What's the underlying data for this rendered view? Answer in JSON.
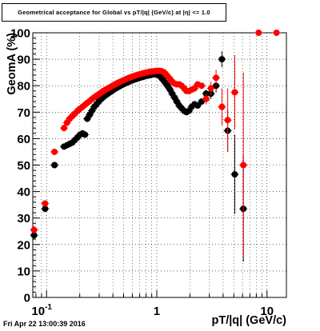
{
  "chart_data": {
    "type": "scatter",
    "title": "Geometrical acceptance for Global vs pT/|q| (GeV/c) at |η| <= 1.0",
    "xlabel": "pT/|q| (GeV/c)",
    "ylabel": "GeomA (%)",
    "xscale": "log",
    "xlim": [
      0.075,
      15
    ],
    "ylim": [
      0,
      100
    ],
    "grid": true,
    "x_tick_labels": [
      {
        "value": 0.1,
        "label": "10",
        "sup": "-1"
      },
      {
        "value": 1,
        "label": "1",
        "sup": ""
      },
      {
        "value": 10,
        "label": "10",
        "sup": ""
      }
    ],
    "y_ticks": [
      0,
      10,
      20,
      30,
      40,
      50,
      60,
      70,
      80,
      90,
      100
    ],
    "series": [
      {
        "color": "#000000",
        "points": [
          {
            "x": 0.077,
            "y": 23.5,
            "ey": 1.5
          },
          {
            "x": 0.097,
            "y": 33.5,
            "ey": 1.2
          },
          {
            "x": 0.118,
            "y": 50.0,
            "ey": 0
          },
          {
            "x": 0.144,
            "y": 57.0,
            "ey": 0
          },
          {
            "x": 0.153,
            "y": 57.5,
            "ey": 0
          },
          {
            "x": 0.162,
            "y": 58.0,
            "ey": 0
          },
          {
            "x": 0.171,
            "y": 58.5,
            "ey": 0
          },
          {
            "x": 0.181,
            "y": 59.5,
            "ey": 0
          },
          {
            "x": 0.191,
            "y": 60.5,
            "ey": 0
          },
          {
            "x": 0.201,
            "y": 61.5,
            "ey": 0
          },
          {
            "x": 0.212,
            "y": 62.0,
            "ey": 0
          },
          {
            "x": 0.223,
            "y": 61.5,
            "ey": 0
          },
          {
            "x": 0.234,
            "y": 67.5,
            "ey": 0
          },
          {
            "x": 0.246,
            "y": 69.0,
            "ey": 0
          },
          {
            "x": 0.258,
            "y": 70.5,
            "ey": 0
          },
          {
            "x": 0.271,
            "y": 72.0,
            "ey": 0
          },
          {
            "x": 0.284,
            "y": 73.0,
            "ey": 0
          },
          {
            "x": 0.298,
            "y": 74.0,
            "ey": 0
          },
          {
            "x": 0.313,
            "y": 75.0,
            "ey": 0
          },
          {
            "x": 0.328,
            "y": 75.7,
            "ey": 0
          },
          {
            "x": 0.344,
            "y": 76.4,
            "ey": 0
          },
          {
            "x": 0.361,
            "y": 77.0,
            "ey": 0
          },
          {
            "x": 0.379,
            "y": 77.6,
            "ey": 0
          },
          {
            "x": 0.398,
            "y": 78.2,
            "ey": 0
          },
          {
            "x": 0.418,
            "y": 78.8,
            "ey": 0
          },
          {
            "x": 0.439,
            "y": 79.3,
            "ey": 0
          },
          {
            "x": 0.461,
            "y": 79.8,
            "ey": 0
          },
          {
            "x": 0.484,
            "y": 80.3,
            "ey": 0
          },
          {
            "x": 0.508,
            "y": 80.7,
            "ey": 0
          },
          {
            "x": 0.533,
            "y": 81.1,
            "ey": 0
          },
          {
            "x": 0.56,
            "y": 81.5,
            "ey": 0
          },
          {
            "x": 0.588,
            "y": 81.9,
            "ey": 0
          },
          {
            "x": 0.617,
            "y": 82.2,
            "ey": 0
          },
          {
            "x": 0.648,
            "y": 82.5,
            "ey": 0
          },
          {
            "x": 0.68,
            "y": 82.8,
            "ey": 0
          },
          {
            "x": 0.714,
            "y": 83.1,
            "ey": 0
          },
          {
            "x": 0.75,
            "y": 83.3,
            "ey": 0
          },
          {
            "x": 0.787,
            "y": 83.6,
            "ey": 0
          },
          {
            "x": 0.826,
            "y": 83.8,
            "ey": 0
          },
          {
            "x": 0.867,
            "y": 84.0,
            "ey": 0
          },
          {
            "x": 0.91,
            "y": 84.2,
            "ey": 0
          },
          {
            "x": 0.955,
            "y": 84.3,
            "ey": 0
          },
          {
            "x": 1.0,
            "y": 84.2,
            "ey": 0
          },
          {
            "x": 1.05,
            "y": 83.8,
            "ey": 0
          },
          {
            "x": 1.1,
            "y": 83.0,
            "ey": 0
          },
          {
            "x": 1.15,
            "y": 82.0,
            "ey": 0
          },
          {
            "x": 1.2,
            "y": 81.0,
            "ey": 0
          },
          {
            "x": 1.26,
            "y": 79.8,
            "ey": 0
          },
          {
            "x": 1.32,
            "y": 78.5,
            "ey": 0
          },
          {
            "x": 1.38,
            "y": 77.0,
            "ey": 0
          },
          {
            "x": 1.45,
            "y": 75.5,
            "ey": 0
          },
          {
            "x": 1.52,
            "y": 74.0,
            "ey": 0
          },
          {
            "x": 1.6,
            "y": 72.5,
            "ey": 0
          },
          {
            "x": 1.68,
            "y": 71.5,
            "ey": 0
          },
          {
            "x": 1.77,
            "y": 70.5,
            "ey": 0
          },
          {
            "x": 1.86,
            "y": 70.0,
            "ey": 0
          },
          {
            "x": 1.96,
            "y": 70.5,
            "ey": 0
          },
          {
            "x": 2.07,
            "y": 72.0,
            "ey": 0
          },
          {
            "x": 2.2,
            "y": 73.0,
            "ey": 0
          },
          {
            "x": 2.35,
            "y": 72.5,
            "ey": 0
          },
          {
            "x": 2.55,
            "y": 74.0,
            "ey": 0
          },
          {
            "x": 2.8,
            "y": 77.0,
            "ey": 1.5
          },
          {
            "x": 3.1,
            "y": 77.0,
            "ey": 2.0
          },
          {
            "x": 3.45,
            "y": 80.0,
            "ey": 2.5
          },
          {
            "x": 3.9,
            "y": 90.0,
            "ey": 3.0
          },
          {
            "x": 4.4,
            "y": 63.0,
            "ey": 8.0
          },
          {
            "x": 5.1,
            "y": 46.5,
            "ey": 15.0
          },
          {
            "x": 6.1,
            "y": 33.5,
            "ey": 20.0
          }
        ]
      },
      {
        "color": "#ff0000",
        "points": [
          {
            "x": 0.077,
            "y": 25.5,
            "ey": 1.5
          },
          {
            "x": 0.097,
            "y": 35.5,
            "ey": 1.2
          },
          {
            "x": 0.118,
            "y": 55.0,
            "ey": 0
          },
          {
            "x": 0.144,
            "y": 64.0,
            "ey": 0
          },
          {
            "x": 0.153,
            "y": 66.0,
            "ey": 0
          },
          {
            "x": 0.162,
            "y": 67.5,
            "ey": 0
          },
          {
            "x": 0.171,
            "y": 68.5,
            "ey": 0
          },
          {
            "x": 0.181,
            "y": 69.5,
            "ey": 0
          },
          {
            "x": 0.191,
            "y": 70.5,
            "ey": 0
          },
          {
            "x": 0.201,
            "y": 71.3,
            "ey": 0
          },
          {
            "x": 0.212,
            "y": 72.0,
            "ey": 0
          },
          {
            "x": 0.223,
            "y": 72.8,
            "ey": 0
          },
          {
            "x": 0.234,
            "y": 73.5,
            "ey": 0
          },
          {
            "x": 0.246,
            "y": 74.2,
            "ey": 0
          },
          {
            "x": 0.258,
            "y": 74.9,
            "ey": 0
          },
          {
            "x": 0.271,
            "y": 75.6,
            "ey": 0
          },
          {
            "x": 0.284,
            "y": 76.2,
            "ey": 0
          },
          {
            "x": 0.298,
            "y": 76.8,
            "ey": 0
          },
          {
            "x": 0.313,
            "y": 77.4,
            "ey": 0
          },
          {
            "x": 0.328,
            "y": 78.0,
            "ey": 0
          },
          {
            "x": 0.344,
            "y": 78.5,
            "ey": 0
          },
          {
            "x": 0.361,
            "y": 79.0,
            "ey": 0
          },
          {
            "x": 0.379,
            "y": 79.5,
            "ey": 0
          },
          {
            "x": 0.398,
            "y": 80.0,
            "ey": 0
          },
          {
            "x": 0.418,
            "y": 80.5,
            "ey": 0
          },
          {
            "x": 0.439,
            "y": 81.0,
            "ey": 0
          },
          {
            "x": 0.461,
            "y": 81.4,
            "ey": 0
          },
          {
            "x": 0.484,
            "y": 81.8,
            "ey": 0
          },
          {
            "x": 0.508,
            "y": 82.2,
            "ey": 0
          },
          {
            "x": 0.533,
            "y": 82.6,
            "ey": 0
          },
          {
            "x": 0.56,
            "y": 83.0,
            "ey": 0
          },
          {
            "x": 0.588,
            "y": 83.3,
            "ey": 0
          },
          {
            "x": 0.617,
            "y": 83.6,
            "ey": 0
          },
          {
            "x": 0.648,
            "y": 83.9,
            "ey": 0
          },
          {
            "x": 0.68,
            "y": 84.2,
            "ey": 0
          },
          {
            "x": 0.714,
            "y": 84.4,
            "ey": 0
          },
          {
            "x": 0.75,
            "y": 84.7,
            "ey": 0
          },
          {
            "x": 0.787,
            "y": 84.9,
            "ey": 0
          },
          {
            "x": 0.826,
            "y": 85.1,
            "ey": 0
          },
          {
            "x": 0.867,
            "y": 85.3,
            "ey": 0
          },
          {
            "x": 0.91,
            "y": 85.4,
            "ey": 0
          },
          {
            "x": 0.955,
            "y": 85.5,
            "ey": 0
          },
          {
            "x": 1.0,
            "y": 85.6,
            "ey": 0
          },
          {
            "x": 1.05,
            "y": 85.6,
            "ey": 0
          },
          {
            "x": 1.1,
            "y": 85.5,
            "ey": 0
          },
          {
            "x": 1.15,
            "y": 85.2,
            "ey": 0
          },
          {
            "x": 1.2,
            "y": 84.5,
            "ey": 0
          },
          {
            "x": 1.26,
            "y": 83.5,
            "ey": 0
          },
          {
            "x": 1.32,
            "y": 82.5,
            "ey": 0
          },
          {
            "x": 1.38,
            "y": 81.5,
            "ey": 0
          },
          {
            "x": 1.45,
            "y": 80.8,
            "ey": 0
          },
          {
            "x": 1.52,
            "y": 80.5,
            "ey": 0
          },
          {
            "x": 1.6,
            "y": 80.5,
            "ey": 0
          },
          {
            "x": 1.68,
            "y": 80.0,
            "ey": 0
          },
          {
            "x": 1.77,
            "y": 79.0,
            "ey": 0
          },
          {
            "x": 1.86,
            "y": 78.0,
            "ey": 0
          },
          {
            "x": 1.96,
            "y": 78.0,
            "ey": 0
          },
          {
            "x": 2.07,
            "y": 78.5,
            "ey": 0
          },
          {
            "x": 2.2,
            "y": 79.0,
            "ey": 0
          },
          {
            "x": 2.35,
            "y": 80.5,
            "ey": 0
          },
          {
            "x": 2.55,
            "y": 80.0,
            "ey": 1.0
          },
          {
            "x": 2.8,
            "y": 75.0,
            "ey": 2.0
          },
          {
            "x": 3.1,
            "y": 79.0,
            "ey": 2.5
          },
          {
            "x": 3.45,
            "y": 83.0,
            "ey": 3.0
          },
          {
            "x": 3.9,
            "y": 72.0,
            "ey": 7.0
          },
          {
            "x": 4.4,
            "y": 67.0,
            "ey": 12.0
          },
          {
            "x": 5.1,
            "y": 77.5,
            "ey": 14.0
          },
          {
            "x": 6.1,
            "y": 50.0,
            "ey": 35.0
          },
          {
            "x": 8.4,
            "y": 100.0,
            "ey": 0
          },
          {
            "x": 12.2,
            "y": 100.0,
            "ey": 0
          }
        ]
      }
    ]
  },
  "footer": {
    "timestamp": "Fri Apr 22 13:00:39 2016"
  }
}
